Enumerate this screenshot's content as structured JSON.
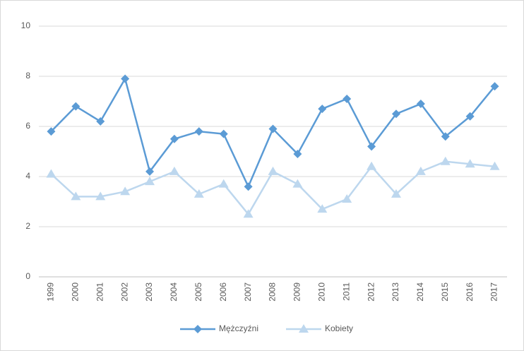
{
  "chart_data": {
    "type": "line",
    "categories": [
      "1999",
      "2000",
      "2001",
      "2002",
      "2003",
      "2004",
      "2005",
      "2006",
      "2007",
      "2008",
      "2009",
      "2010",
      "2011",
      "2012",
      "2013",
      "2014",
      "2015",
      "2016",
      "2017"
    ],
    "series": [
      {
        "name": "Mężczyźni",
        "color": "#5b9bd5",
        "marker": "diamond",
        "values": [
          5.8,
          6.8,
          6.2,
          7.9,
          4.2,
          5.5,
          5.8,
          5.7,
          3.6,
          5.9,
          4.9,
          6.7,
          7.1,
          5.2,
          6.5,
          6.9,
          5.6,
          6.4,
          7.6
        ]
      },
      {
        "name": "Kobiety",
        "color": "#bdd7ee",
        "marker": "triangle",
        "values": [
          4.1,
          3.2,
          3.2,
          3.4,
          3.8,
          4.2,
          3.3,
          3.7,
          2.5,
          4.2,
          3.7,
          2.7,
          3.1,
          4.4,
          3.3,
          4.2,
          4.6,
          4.5,
          4.4
        ]
      }
    ],
    "ylim": [
      0,
      10
    ],
    "yticks": [
      0,
      2,
      4,
      6,
      8,
      10
    ],
    "grid": true,
    "legend": "bottom"
  }
}
